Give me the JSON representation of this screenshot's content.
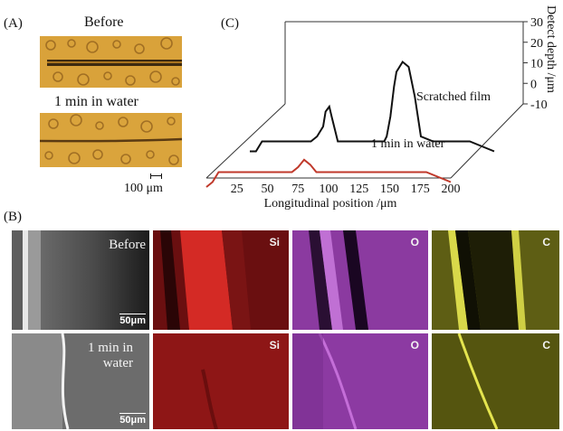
{
  "panel_a": {
    "label": "(A)",
    "before_label": "Before",
    "after_label": "1 min in water",
    "scale_label": "100 μm"
  },
  "panel_b": {
    "label": "(B)",
    "rows": [
      {
        "sem_label": "Before",
        "scale": "50μm",
        "maps": [
          "Si",
          "O",
          "C"
        ]
      },
      {
        "sem_label": "1 min in water",
        "scale": "50μm",
        "maps": [
          "Si",
          "O",
          "C"
        ]
      }
    ]
  },
  "panel_c": {
    "label": "(C)",
    "chart_data": {
      "type": "line",
      "title": "",
      "xlabel": "Longitudinal position /μm",
      "ylabel": "Detect depth /μm",
      "x_ticks": [
        25,
        50,
        75,
        100,
        125,
        150,
        175,
        200
      ],
      "y_ticks": [
        30,
        20,
        10,
        0,
        -10
      ],
      "xlim": [
        0,
        200
      ],
      "ylim": [
        -10,
        30
      ],
      "series": [
        {
          "name": "Scratched film",
          "color": "#111111",
          "x": [
            0,
            5,
            10,
            20,
            30,
            40,
            50,
            55,
            60,
            62,
            65,
            67,
            70,
            72,
            75,
            80,
            90,
            100,
            110,
            112,
            115,
            118,
            120,
            125,
            130,
            135,
            140,
            150,
            160,
            170,
            180,
            200
          ],
          "y": [
            -5,
            -5,
            -3,
            -3,
            -3,
            -3,
            -3,
            -2,
            0,
            3,
            4,
            2,
            -1,
            -3,
            -3,
            -3,
            -3,
            -3,
            -3,
            -2,
            2,
            8,
            11,
            13,
            12,
            6,
            -2,
            -3,
            -3,
            -3,
            -3,
            -5
          ]
        },
        {
          "name": "1 min in water",
          "color": "#c0392b",
          "x": [
            0,
            5,
            10,
            30,
            50,
            60,
            70,
            75,
            80,
            85,
            90,
            95,
            100,
            120,
            140,
            160,
            180,
            200
          ],
          "y": [
            -4,
            -3,
            -1,
            -1,
            -1,
            -1,
            -1,
            0,
            1.5,
            0.5,
            -1,
            -1,
            -1,
            -1,
            -1,
            -1,
            -1,
            -3
          ]
        }
      ]
    }
  }
}
